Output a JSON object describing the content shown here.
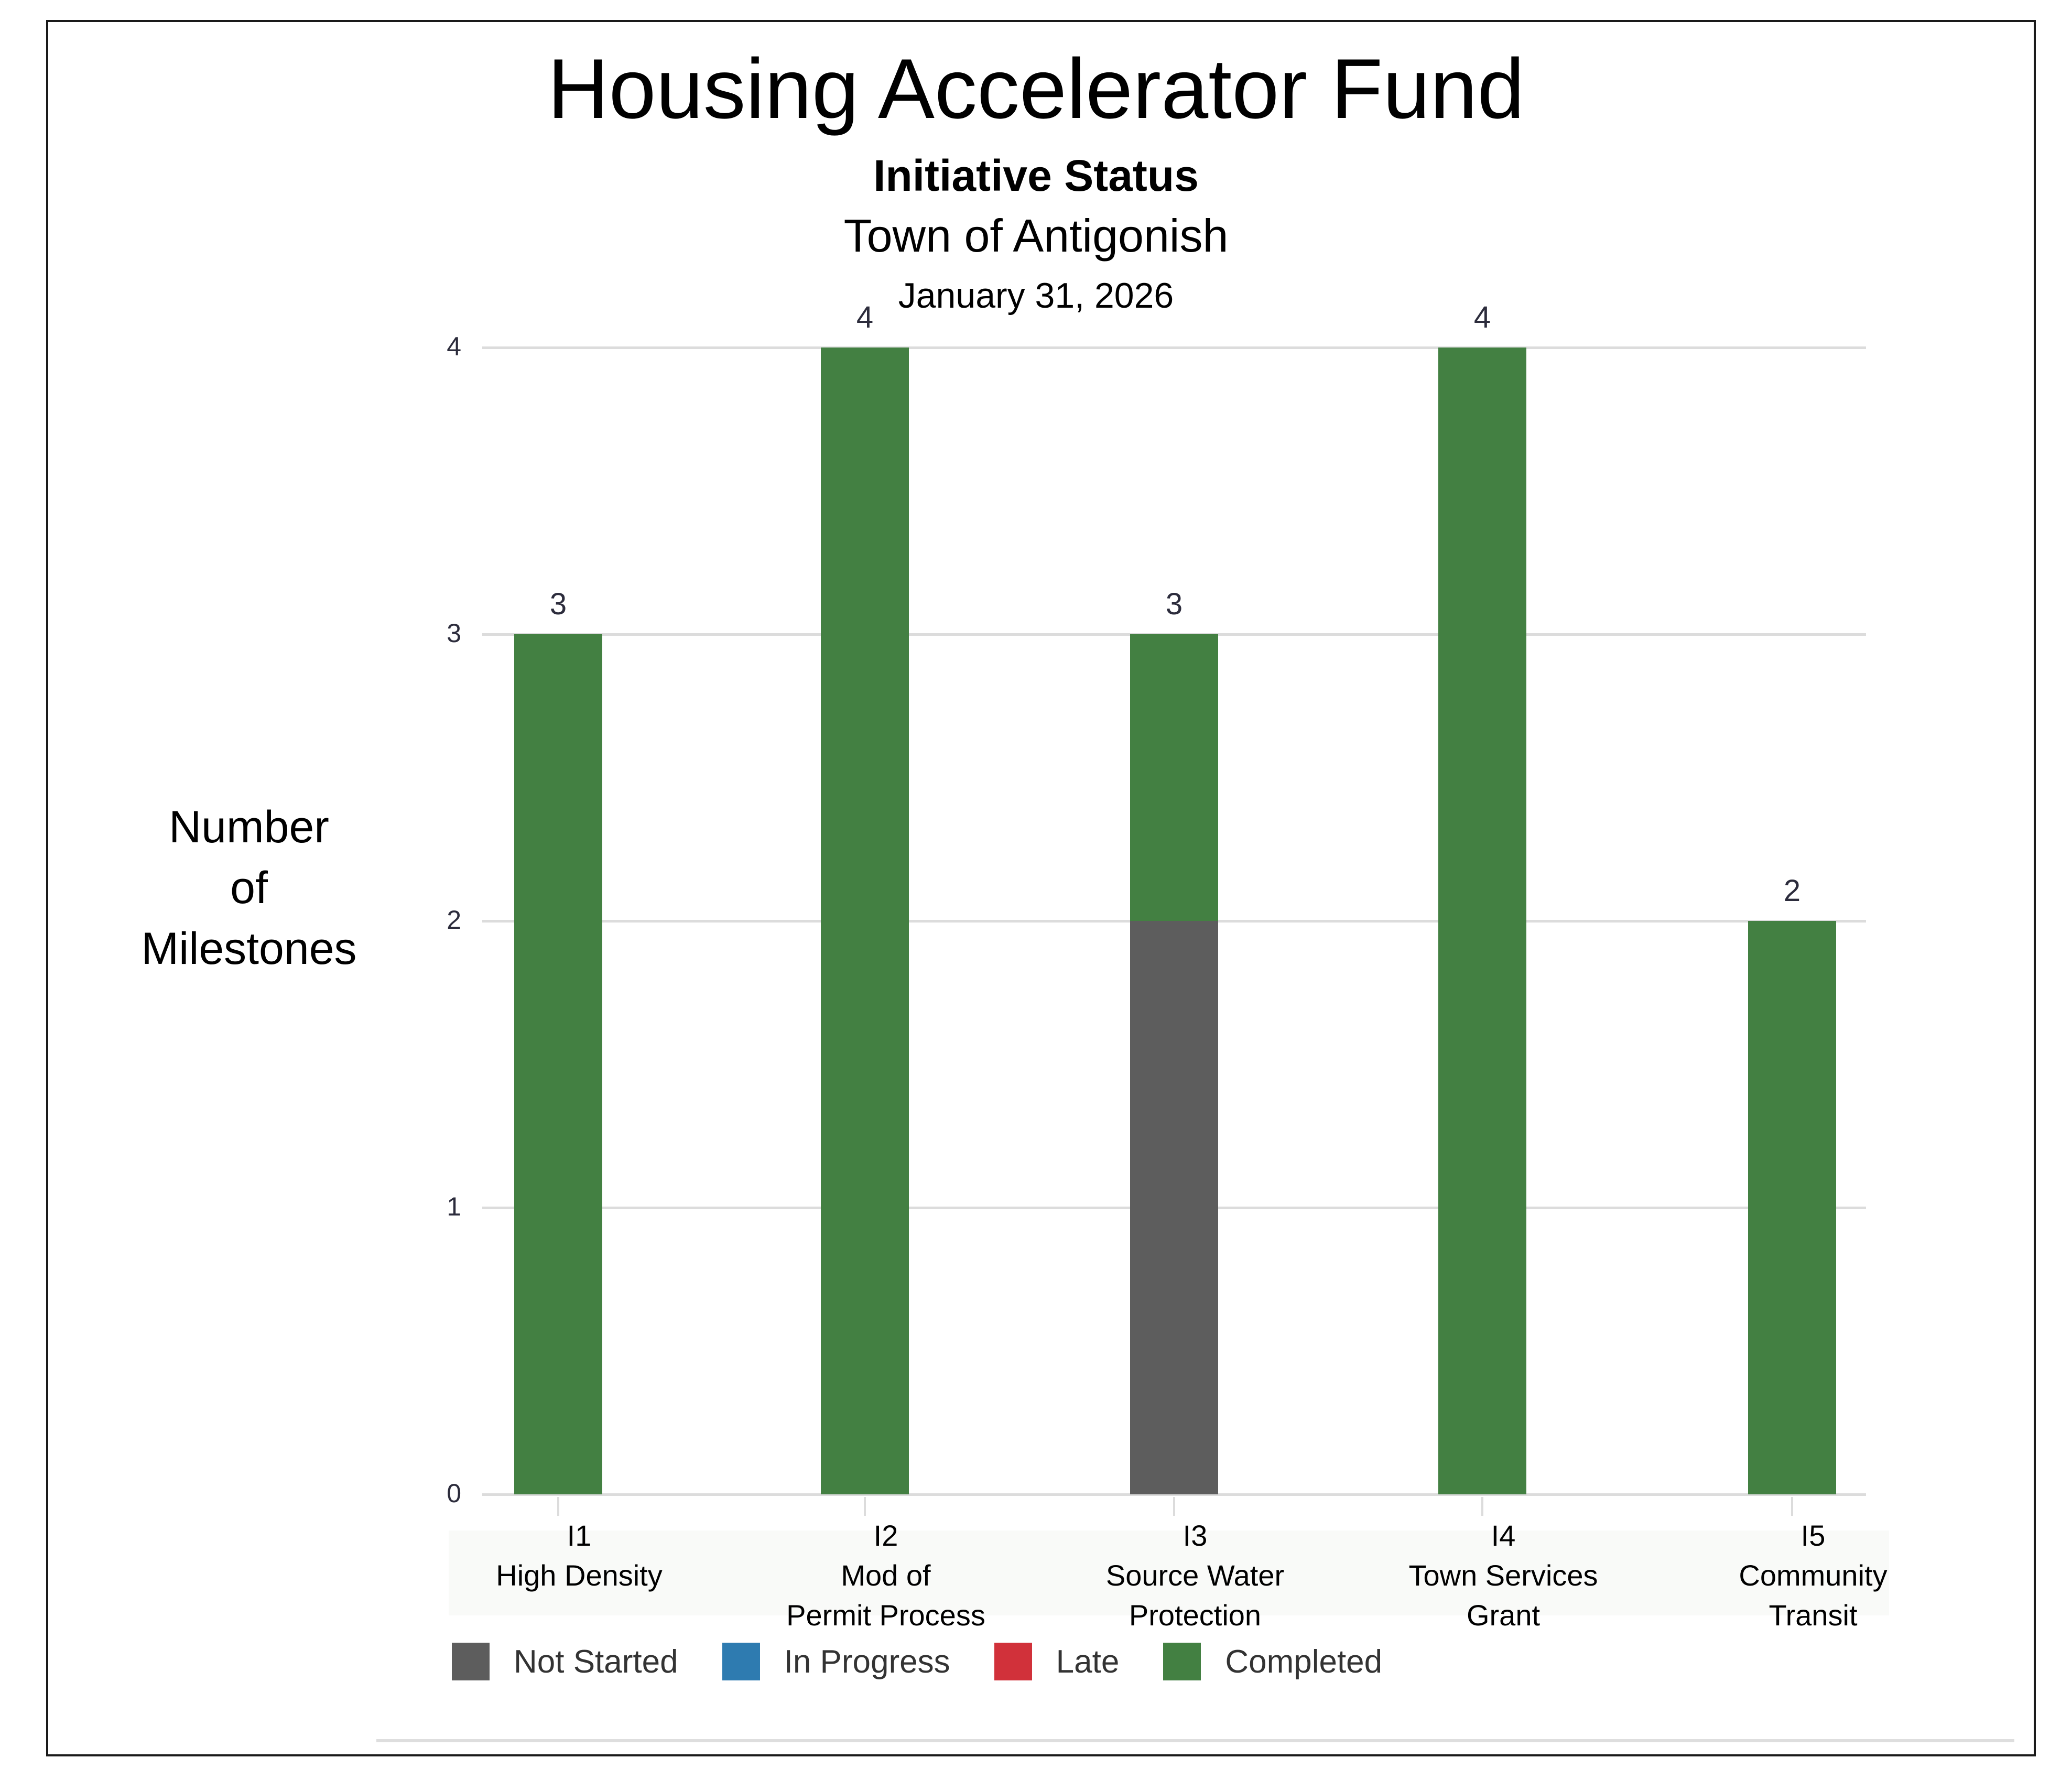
{
  "header": {
    "title": "Housing Accelerator Fund",
    "subtitle": "Initiative Status",
    "organization": "Town of Antigonish",
    "date": "January 31, 2026"
  },
  "axis": {
    "ylabel_lines": [
      "Number",
      "of",
      "Milestones"
    ],
    "yticks": [
      "0",
      "1",
      "2",
      "3",
      "4"
    ]
  },
  "categories": [
    {
      "code": "I1",
      "line1": "High Density",
      "line2": "",
      "total": "3"
    },
    {
      "code": "I2",
      "line1": "Mod of",
      "line2": "Permit Process",
      "total": "4"
    },
    {
      "code": "I3",
      "line1": "Source Water",
      "line2": "Protection",
      "total": "3"
    },
    {
      "code": "I4",
      "line1": "Town Services",
      "line2": "Grant",
      "total": "4"
    },
    {
      "code": "I5",
      "line1": "Community",
      "line2": "Transit",
      "total": "2"
    }
  ],
  "legend": [
    {
      "label": "Not Started",
      "color": "#5d5d5d"
    },
    {
      "label": "In Progress",
      "color": "#2e7bb0"
    },
    {
      "label": "Late",
      "color": "#d1313a"
    },
    {
      "label": "Completed",
      "color": "#438042"
    }
  ],
  "chart_data": {
    "type": "bar",
    "stacked": true,
    "title": "Housing Accelerator Fund",
    "subtitle": "Initiative Status — Town of Antigonish — January 31, 2026",
    "xlabel": "",
    "ylabel": "Number of Milestones",
    "categories": [
      "I1 High Density",
      "I2 Mod of Permit Process",
      "I3 Source Water Protection",
      "I4 Town Services Grant",
      "I5 Community Transit"
    ],
    "series": [
      {
        "name": "Not Started",
        "color": "#5d5d5d",
        "values": [
          0,
          0,
          2,
          0,
          0
        ]
      },
      {
        "name": "In Progress",
        "color": "#2e7bb0",
        "values": [
          0,
          0,
          0,
          0,
          0
        ]
      },
      {
        "name": "Late",
        "color": "#d1313a",
        "values": [
          0,
          0,
          0,
          0,
          0
        ]
      },
      {
        "name": "Completed",
        "color": "#438042",
        "values": [
          3,
          4,
          1,
          4,
          2
        ]
      }
    ],
    "totals": [
      3,
      4,
      3,
      4,
      2
    ],
    "ylim": [
      0,
      4
    ],
    "yticks": [
      0,
      1,
      2,
      3,
      4
    ],
    "grid": true,
    "legend_position": "bottom-left"
  }
}
